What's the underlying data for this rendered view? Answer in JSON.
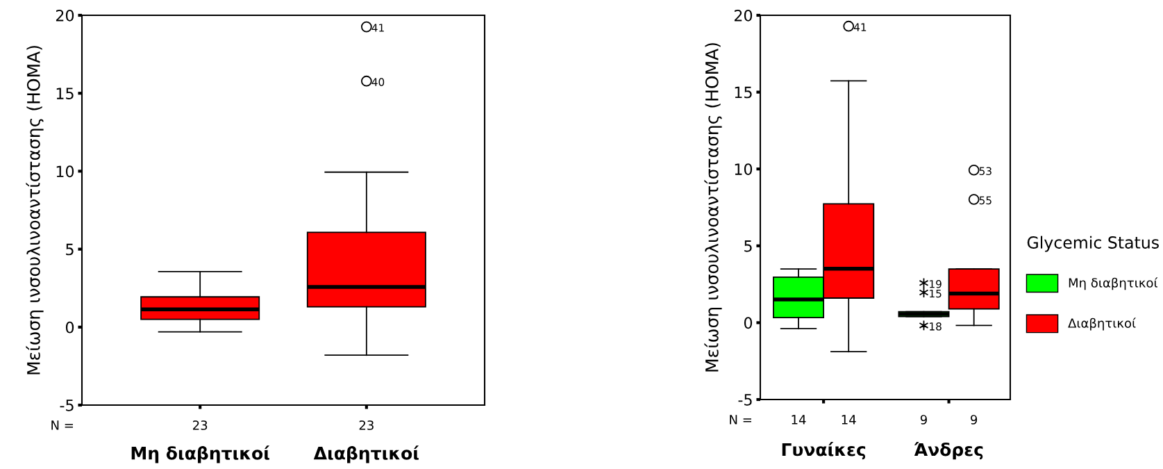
{
  "chart_data": [
    {
      "type": "box",
      "ylabel": "Μείωση ινσουλινοαντίστασης (HOMA)",
      "categories": [
        "Μη διαβητικοί",
        "Διαβητικοί"
      ],
      "series": [
        {
          "color": "#ff0000",
          "marker": "circle",
          "value_labels": [
            "23",
            "23"
          ],
          "boxes": [
            {
              "low": -0.3,
              "q1": 0.5,
              "median": 1.14,
              "q3": 1.94,
              "high": 3.56
            },
            {
              "low": -1.8,
              "q1": 1.3,
              "median": 2.58,
              "q3": 6.08,
              "high": 9.94,
              "outliers": [
                15.78,
                19.26
              ]
            }
          ]
        }
      ],
      "ylim": [
        -5,
        20
      ],
      "yticks": [
        -5,
        0,
        5,
        10,
        15,
        20
      ],
      "grid": false,
      "legend": false,
      "annotations": [
        "N =",
        "40",
        "41"
      ]
    },
    {
      "type": "box",
      "ylabel": "Μείωση ινσουλινοαντίστασης (HOMA)",
      "categories": [
        "Γυναίκες",
        "Άνδρες"
      ],
      "legend_title": "Glycemic Status",
      "series": [
        {
          "name": "Μη διαβητικοί",
          "color": "#00ff00",
          "marker": "cross",
          "value_labels": [
            "14",
            "9"
          ],
          "boxes": [
            {
              "low": -0.38,
              "q1": 0.33,
              "median": 1.51,
              "q3": 2.96,
              "high": 3.49
            },
            {
              "low": 0.4,
              "q1": 0.4,
              "median": 0.56,
              "q3": 0.71,
              "high": 0.71,
              "outliers": [
                -0.18,
                1.96,
                2.58
              ]
            }
          ]
        },
        {
          "name": "Διαβητικοί",
          "color": "#ff0000",
          "marker": "circle",
          "value_labels": [
            "14",
            "9"
          ],
          "boxes": [
            {
              "low": -1.89,
              "q1": 1.6,
              "median": 3.51,
              "q3": 7.73,
              "high": 15.73,
              "outliers": [
                19.29
              ]
            },
            {
              "low": -0.18,
              "q1": 0.89,
              "median": 1.89,
              "q3": 3.49,
              "high": 3.49,
              "outliers": [
                8.02,
                9.93
              ]
            }
          ]
        }
      ],
      "ylim": [
        -5,
        20
      ],
      "yticks": [
        -5,
        0,
        5,
        10,
        15,
        20
      ],
      "grid": false,
      "legend": "right",
      "annotations": [
        "N =",
        "18",
        "15",
        "19",
        "41",
        "55",
        "53"
      ]
    }
  ]
}
